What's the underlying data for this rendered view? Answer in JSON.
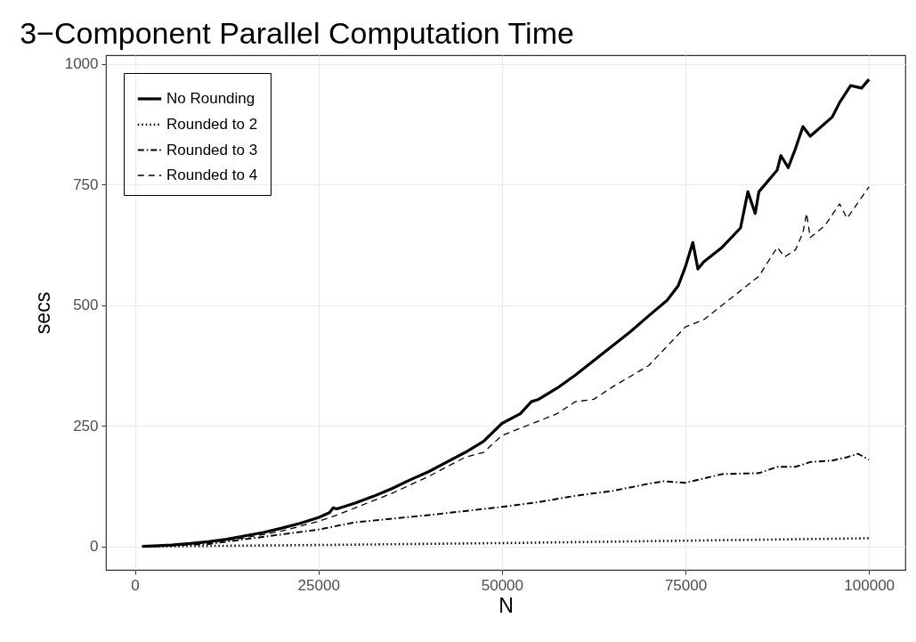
{
  "chart_data": {
    "type": "line",
    "title": "3−Component Parallel Computation Time",
    "xlabel": "N",
    "ylabel": "secs",
    "xlim": [
      -3950,
      104950
    ],
    "ylim": [
      -48.5,
      1018
    ],
    "xticks": [
      0,
      25000,
      50000,
      75000,
      100000
    ],
    "yticks": [
      0,
      250,
      500,
      750,
      1000
    ],
    "grid": true,
    "legend": "top left",
    "series": [
      {
        "name": "No Rounding",
        "color": "#000000",
        "line_style": "solid",
        "x": [
          1000,
          2500,
          5000,
          7500,
          10000,
          12500,
          15000,
          17500,
          20000,
          22500,
          25000,
          26500,
          27000,
          27500,
          30000,
          32500,
          35000,
          37500,
          40000,
          42500,
          45000,
          47500,
          50000,
          52500,
          54000,
          55000,
          57500,
          60000,
          62500,
          65000,
          67500,
          70000,
          72500,
          74000,
          75000,
          76000,
          76700,
          77500,
          80000,
          82500,
          83500,
          84500,
          85000,
          87500,
          88000,
          89000,
          90000,
          91000,
          92000,
          95000,
          96000,
          97500,
          99000,
          100000
        ],
        "values": [
          0,
          1,
          3,
          6,
          10,
          15,
          22,
          29,
          38,
          48,
          60,
          70,
          80,
          78,
          90,
          104,
          120,
          138,
          155,
          175,
          195,
          218,
          255,
          275,
          300,
          305,
          328,
          355,
          385,
          415,
          445,
          478,
          510,
          540,
          580,
          630,
          575,
          590,
          620,
          660,
          735,
          690,
          735,
          780,
          810,
          785,
          825,
          870,
          850,
          890,
          920,
          955,
          950,
          968
        ]
      },
      {
        "name": "Rounded to 2",
        "color": "#000000",
        "line_style": "dotted",
        "x": [
          1000,
          25000,
          50000,
          75000,
          100000
        ],
        "values": [
          0,
          3,
          7,
          12,
          17
        ]
      },
      {
        "name": "Rounded to 3",
        "color": "#000000",
        "line_style": "dashdot",
        "x": [
          1000,
          10000,
          20000,
          25000,
          30000,
          40000,
          50000,
          55000,
          60000,
          65000,
          70000,
          72000,
          75000,
          80000,
          85000,
          87500,
          90000,
          92000,
          95000,
          97000,
          98500,
          100000
        ],
        "values": [
          0,
          5,
          25,
          35,
          50,
          65,
          82,
          92,
          105,
          115,
          130,
          135,
          132,
          150,
          152,
          165,
          165,
          175,
          178,
          185,
          192,
          180
        ]
      },
      {
        "name": "Rounded to 4",
        "color": "#000000",
        "line_style": "dashed",
        "x": [
          1000,
          5000,
          10000,
          15000,
          20000,
          25000,
          27500,
          30000,
          35000,
          40000,
          45000,
          47500,
          50000,
          55000,
          57500,
          60000,
          62500,
          65000,
          70000,
          75000,
          77500,
          80000,
          82500,
          85000,
          87500,
          88500,
          90000,
          91000,
          91500,
          92000,
          94000,
          96000,
          97000,
          100000
        ],
        "values": [
          0,
          2,
          8,
          18,
          32,
          52,
          65,
          80,
          110,
          145,
          185,
          195,
          230,
          260,
          275,
          300,
          305,
          330,
          375,
          455,
          470,
          500,
          530,
          560,
          620,
          600,
          615,
          650,
          690,
          640,
          665,
          710,
          680,
          745
        ]
      }
    ]
  }
}
